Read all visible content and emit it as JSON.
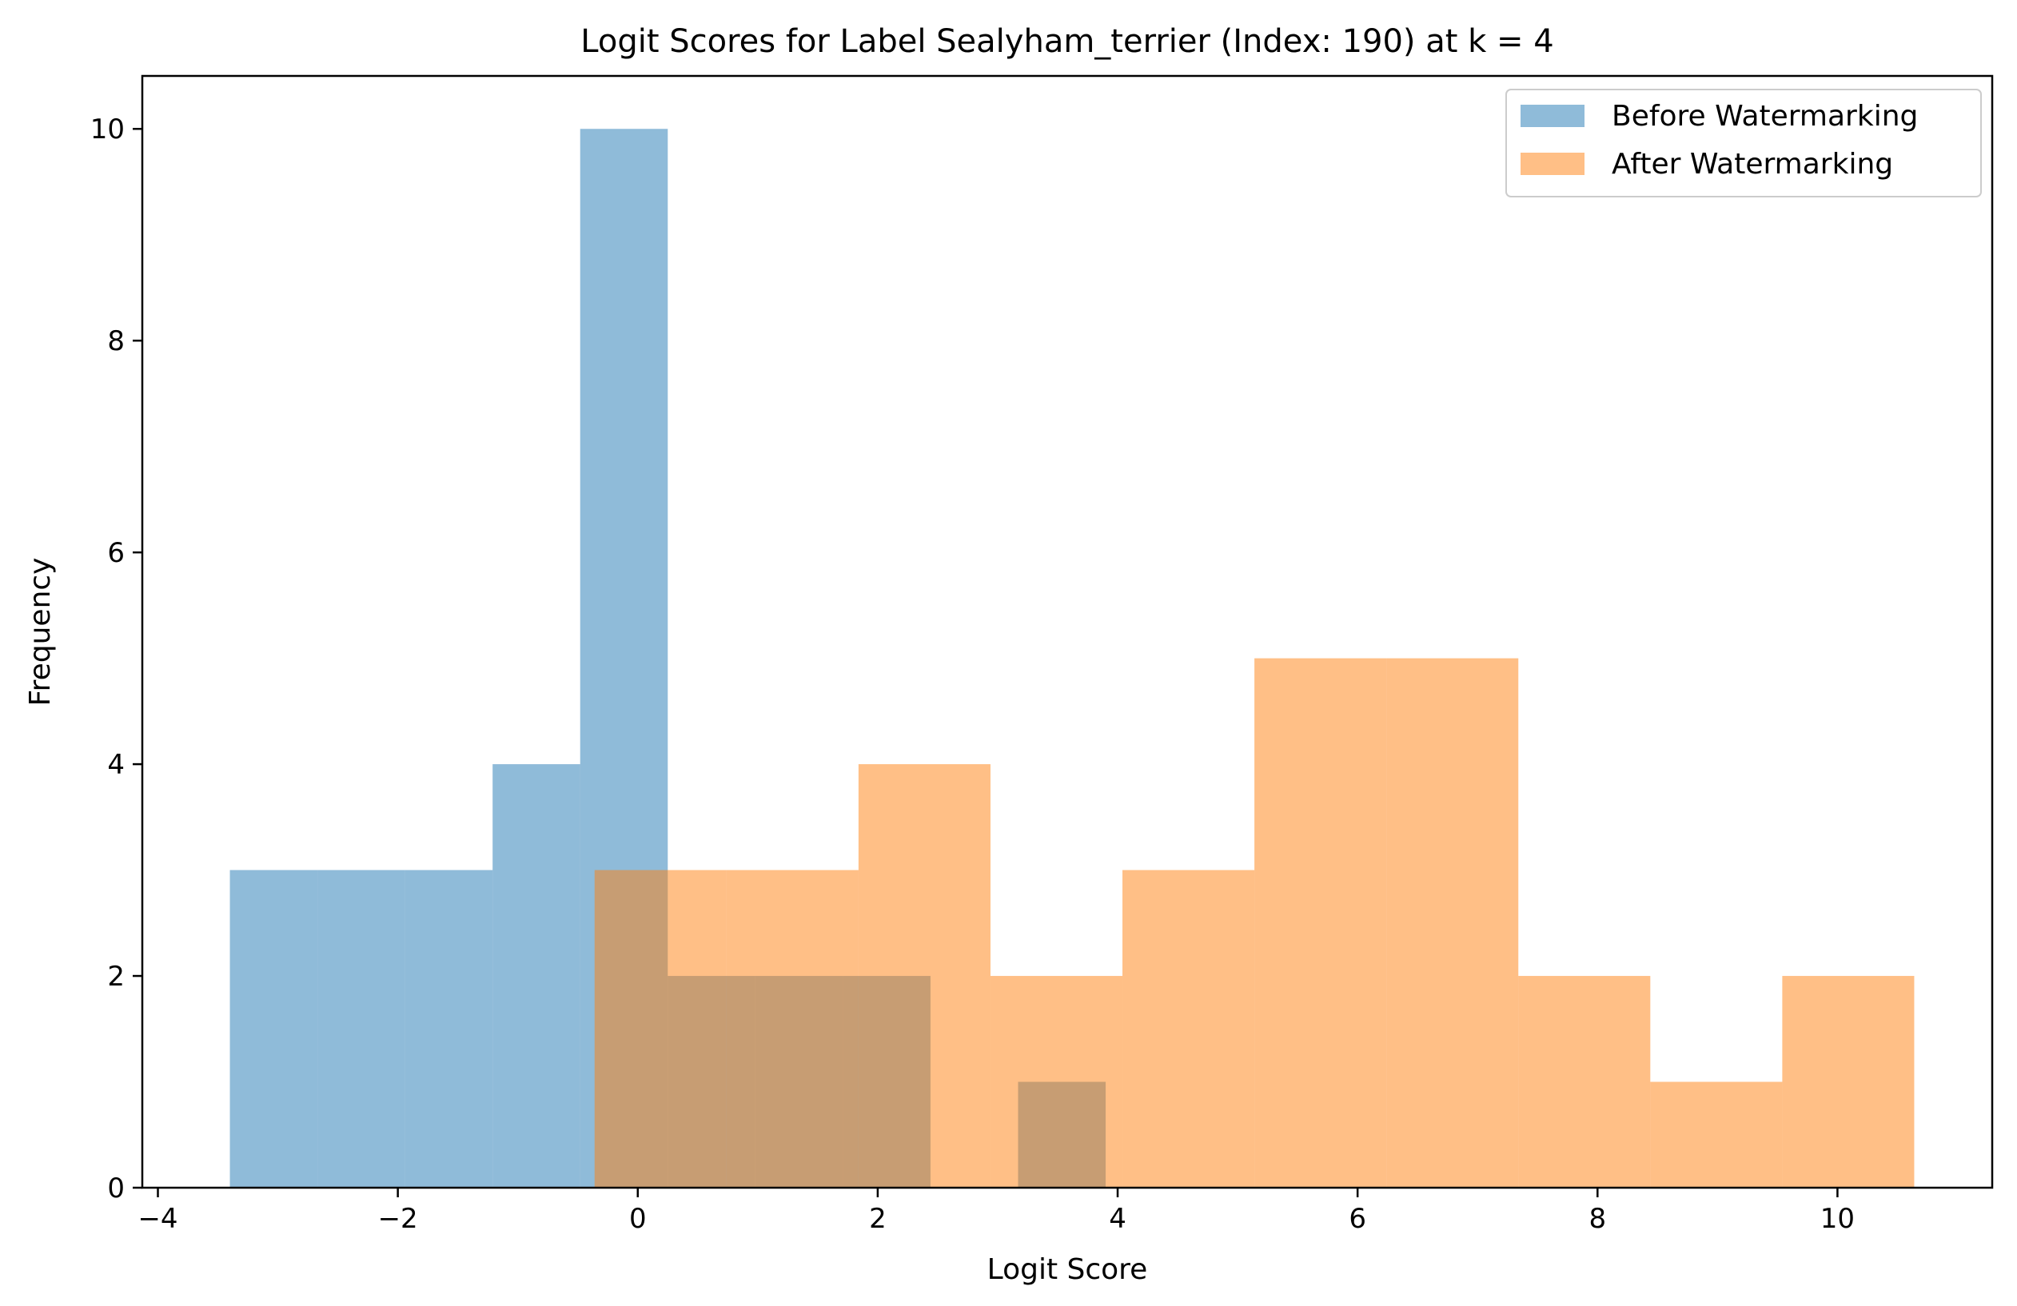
{
  "chart_data": {
    "type": "histogram",
    "title": "Logit Scores for Label Sealyham_terrier (Index: 190) at k = 4",
    "xlabel": "Logit Score",
    "ylabel": "Frequency",
    "xlim": [
      -4.13,
      11.29
    ],
    "ylim": [
      0,
      10.5
    ],
    "xticks": [
      -4,
      -2,
      0,
      2,
      4,
      6,
      8,
      10
    ],
    "xtick_labels": [
      "−4",
      "−2",
      "0",
      "2",
      "4",
      "6",
      "8",
      "10"
    ],
    "yticks": [
      0,
      2,
      4,
      6,
      8,
      10
    ],
    "ytick_labels": [
      "0",
      "2",
      "4",
      "6",
      "8",
      "10"
    ],
    "grid": false,
    "legend_position": "upper right",
    "series": [
      {
        "name": "Before Watermarking",
        "color": "#1f77b4",
        "alpha": 0.5,
        "bin_edges": [
          -3.4,
          -2.67,
          -1.94,
          -1.21,
          -0.48,
          0.25,
          0.98,
          1.71,
          2.44,
          3.17,
          3.9
        ],
        "counts": [
          3,
          3,
          3,
          4,
          10,
          2,
          2,
          2,
          0,
          1
        ]
      },
      {
        "name": "After Watermarking",
        "color": "#ff7f0e",
        "alpha": 0.5,
        "bin_edges": [
          -0.36,
          0.74,
          1.84,
          2.94,
          4.04,
          5.14,
          6.24,
          7.34,
          8.44,
          9.54,
          10.64
        ],
        "counts": [
          3,
          3,
          4,
          2,
          3,
          5,
          5,
          2,
          1,
          2
        ]
      }
    ]
  }
}
